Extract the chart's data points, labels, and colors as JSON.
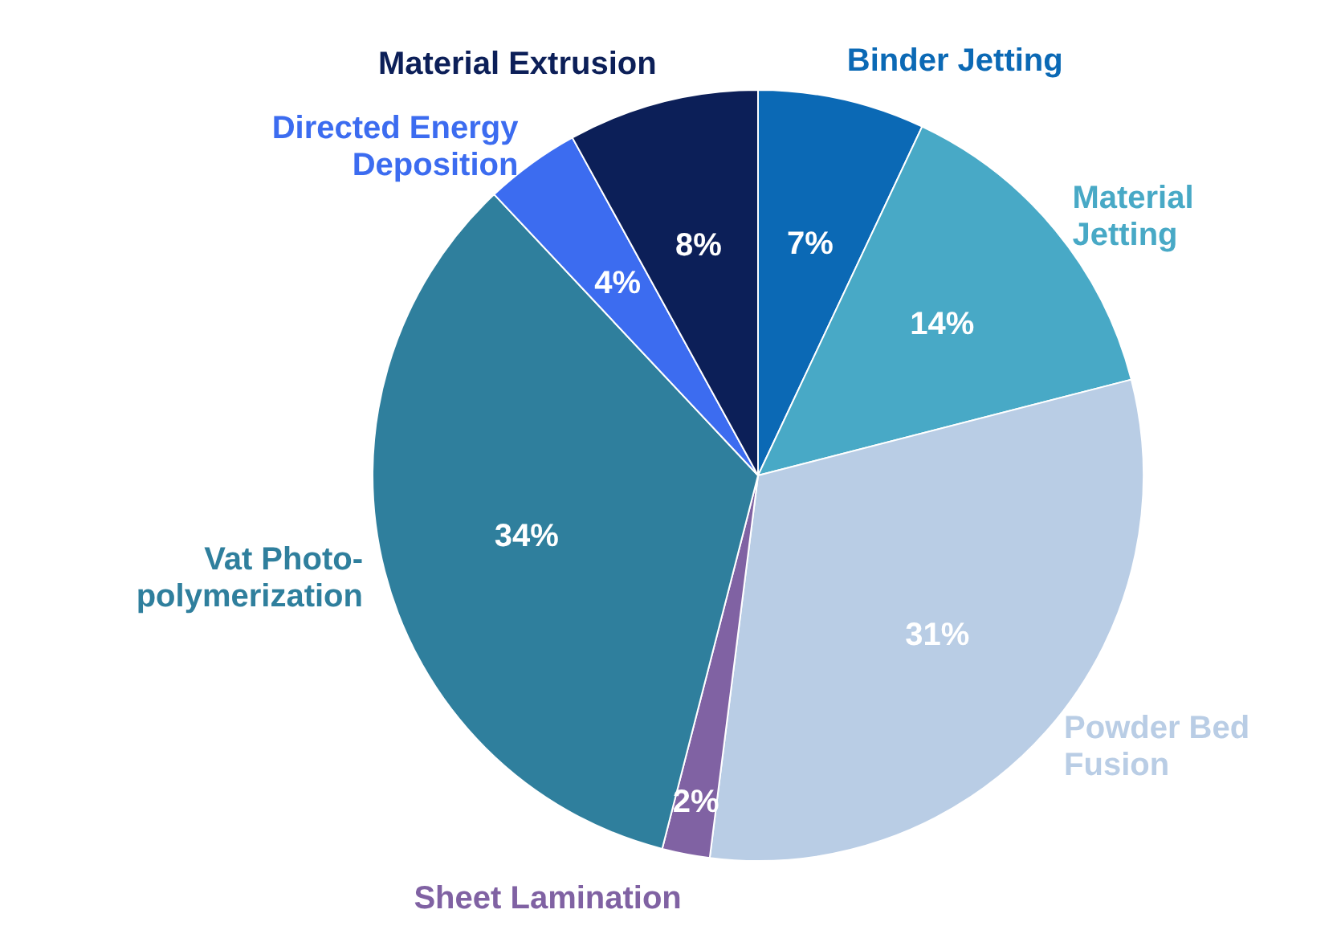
{
  "chart_data": {
    "type": "pie",
    "categories": [
      "Binder Jetting",
      "Material Jetting",
      "Powder Bed Fusion",
      "Sheet Lamination",
      "Vat Photo-polymerization",
      "Directed Energy Deposition",
      "Material Extrusion"
    ],
    "values": [
      7,
      14,
      31,
      2,
      34,
      4,
      8
    ],
    "value_labels": [
      "7%",
      "14%",
      "31%",
      "2%",
      "34%",
      "4%",
      "8%"
    ],
    "colors": [
      "#0b69b5",
      "#48a9c6",
      "#b9cde5",
      "#8062a3",
      "#2f7f9d",
      "#3c6cf0",
      "#0c1f58"
    ],
    "legend": false
  }
}
